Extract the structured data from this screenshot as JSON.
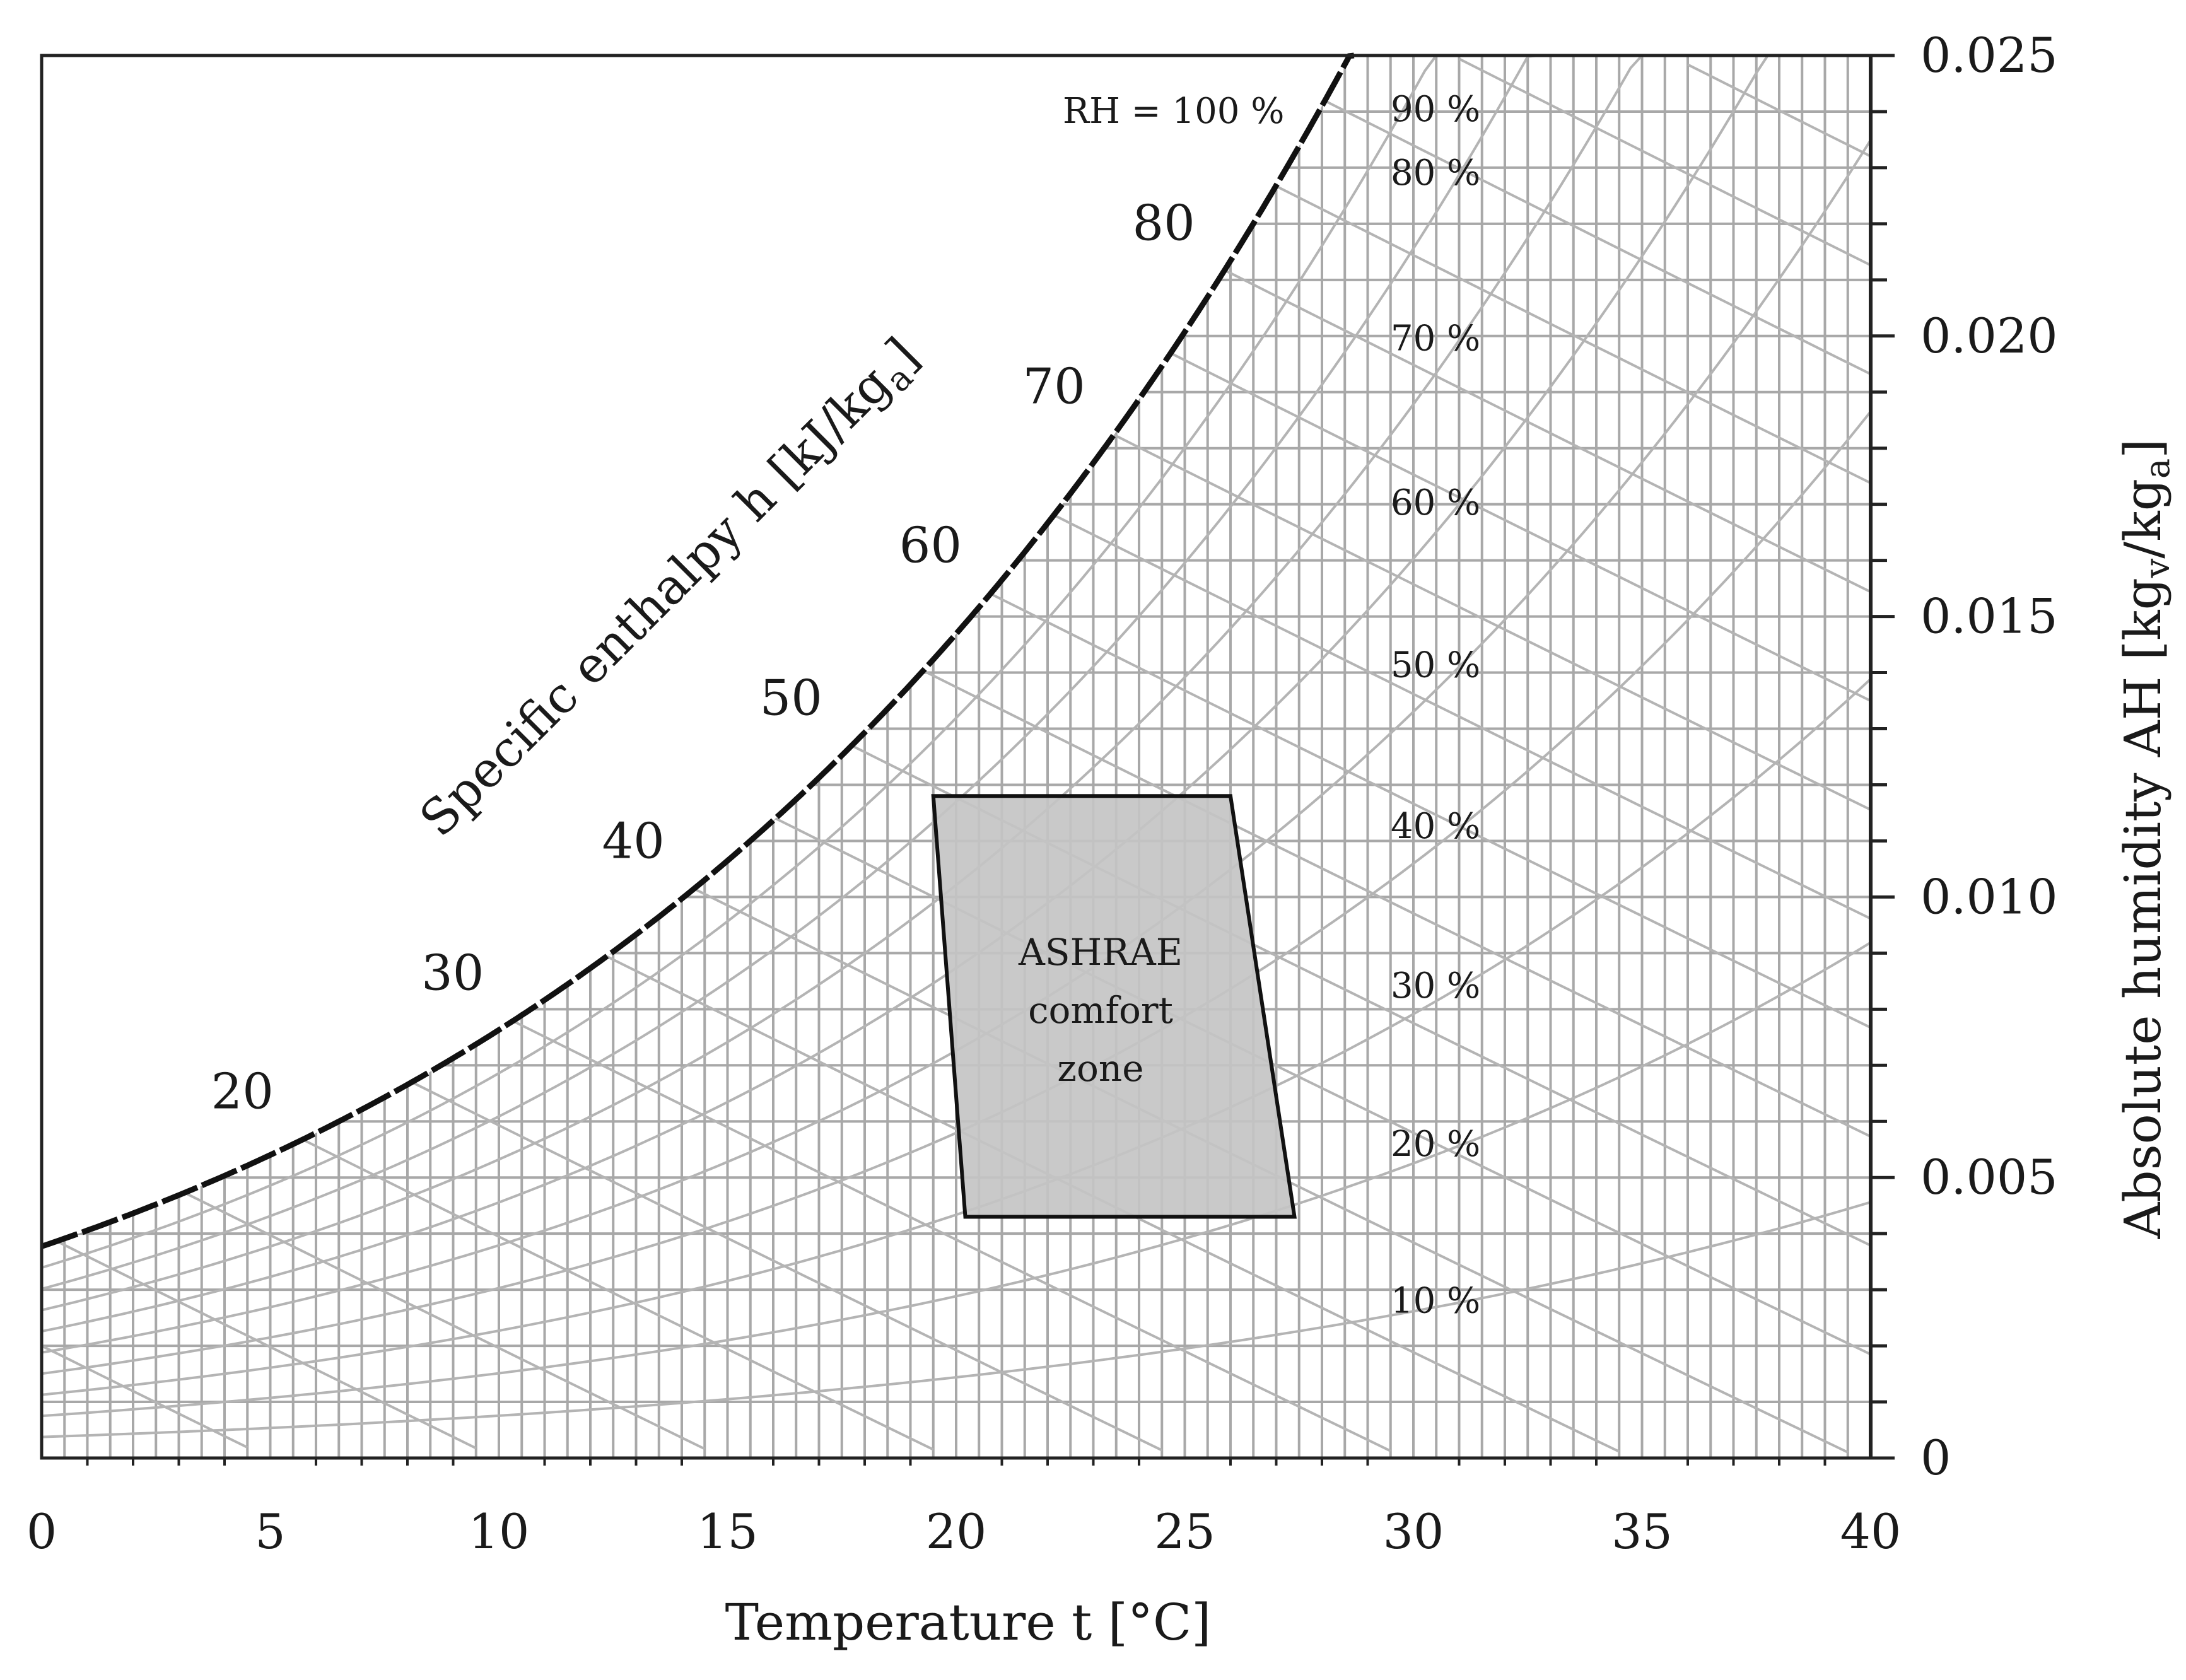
{
  "chart_data": {
    "type": "line",
    "xlabel": "Temperature  t  [°C]",
    "ylabel": "Absolute humidity AH  [kg",
    "ylabel_sub1": "v",
    "ylabel_mid": "/kg",
    "ylabel_sub2": "a",
    "ylabel_end": "]",
    "xlim": [
      0,
      40
    ],
    "ylim": [
      0,
      0.025
    ],
    "x_ticks": [
      "0",
      "5",
      "10",
      "15",
      "20",
      "25",
      "30",
      "35",
      "40"
    ],
    "y_ticks": [
      "0",
      "0.005",
      "0.010",
      "0.015",
      "0.020",
      "0.025"
    ],
    "y_tick_values": [
      0,
      0.005,
      0.01,
      0.015,
      0.02,
      0.025
    ],
    "grid": true,
    "saturation_curve": {
      "label": "RH = 100 %",
      "x": [
        0,
        5,
        10,
        15,
        20,
        25,
        28.6
      ],
      "y": [
        0.0038,
        0.0054,
        0.0076,
        0.0106,
        0.0146,
        0.02,
        0.025
      ]
    },
    "rh_curves": {
      "labels": [
        "90 %",
        "80 %",
        "70 %",
        "60 %",
        "50 %",
        "40 %",
        "30 %",
        "20 %",
        "10 %"
      ],
      "values": [
        90,
        80,
        70,
        60,
        50,
        40,
        30,
        20,
        10
      ]
    },
    "enthalpy_lines": {
      "title_part1": "Specific enthalpy h [kJ/kg",
      "title_sub": "a",
      "title_end": "]",
      "labels": [
        "20",
        "30",
        "40",
        "50",
        "60",
        "70",
        "80"
      ],
      "values": [
        20,
        30,
        40,
        50,
        60,
        70,
        80
      ]
    },
    "comfort_zone": {
      "label_lines": [
        "ASHRAE",
        "comfort",
        "zone"
      ],
      "polygon": [
        [
          19.5,
          0.0118
        ],
        [
          26.0,
          0.0118
        ],
        [
          27.4,
          0.0043
        ],
        [
          20.2,
          0.0043
        ]
      ],
      "fill": "#c4c4c4"
    }
  }
}
